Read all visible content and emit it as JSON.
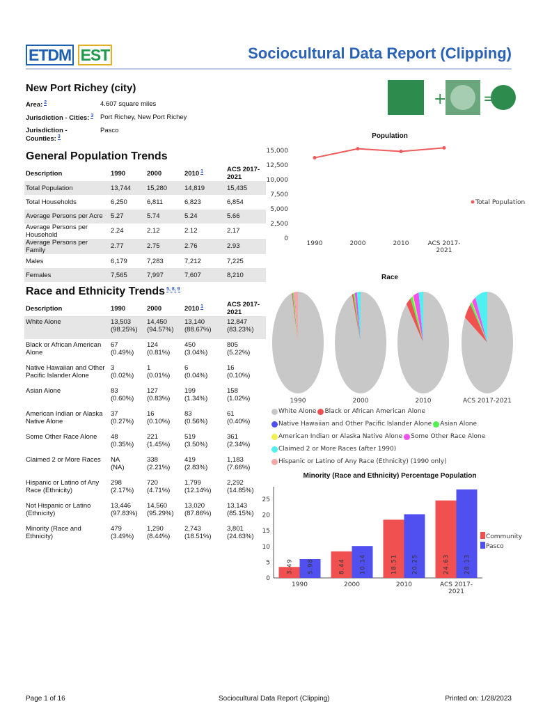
{
  "header": {
    "logo": [
      "ETDM",
      "EST"
    ],
    "title": "Sociocultural Data Report (Clipping)"
  },
  "place": "New Port Richey (city)",
  "info": [
    {
      "label": "Area:",
      "ref": "2",
      "value": "4.607 square miles"
    },
    {
      "label": "Jurisdiction - Cities:",
      "ref": "3",
      "value": "Port Richey, New Port Richey"
    },
    {
      "label": "Jurisdiction - Counties:",
      "ref": "3",
      "value": "Pasco"
    }
  ],
  "general": {
    "title": "General Population Trends",
    "columns": [
      {
        "text": "Description"
      },
      {
        "text": "1990"
      },
      {
        "text": "2000"
      },
      {
        "text": "2010",
        "ref": "1"
      },
      {
        "text": "ACS 2017-2021"
      }
    ],
    "rows": [
      [
        "Total Population",
        "13,744",
        "15,280",
        "14,819",
        "15,435"
      ],
      [
        "Total Households",
        "6,250",
        "6,811",
        "6,823",
        "6,854"
      ],
      [
        "Average Persons per Acre",
        "5.27",
        "5.74",
        "5.24",
        "5.66"
      ],
      [
        "Average Persons per Household",
        "2.24",
        "2.12",
        "2.12",
        "2.17"
      ],
      [
        "Average Persons per Family",
        "2.77",
        "2.75",
        "2.76",
        "2.93"
      ],
      [
        "Males",
        "6,179",
        "7,283",
        "7,212",
        "7,225"
      ],
      [
        "Females",
        "7,565",
        "7,997",
        "7,607",
        "8,210"
      ]
    ]
  },
  "race": {
    "title": "Race and Ethnicity Trends",
    "refs": "5, 8, 9",
    "columns": [
      {
        "text": "Description"
      },
      {
        "text": "1990"
      },
      {
        "text": "2000"
      },
      {
        "text": "2010",
        "ref": "1"
      },
      {
        "text": "ACS 2017-2021"
      }
    ],
    "rows": [
      {
        "cells": [
          "White Alone",
          "13,503",
          "14,450",
          "13,140",
          "12,847"
        ],
        "pct": [
          "(98.25%)",
          "(94.57%)",
          "(88.67%)",
          "(83.23%)"
        ]
      },
      {
        "cells": [
          "Black or African American Alone",
          "67",
          "124",
          "450",
          "805"
        ],
        "pct": [
          "(0.49%)",
          "(0.81%)",
          "(3.04%)",
          "(5.22%)"
        ]
      },
      {
        "cells": [
          "Native Hawaiian and Other Pacific Islander Alone",
          "3",
          "1",
          "6",
          "16"
        ],
        "pct": [
          "(0.02%)",
          "(0.01%)",
          "(0.04%)",
          "(0.10%)"
        ]
      },
      {
        "cells": [
          "Asian Alone",
          "83",
          "127",
          "199",
          "158"
        ],
        "pct": [
          "(0.60%)",
          "(0.83%)",
          "(1.34%)",
          "(1.02%)"
        ]
      },
      {
        "cells": [
          "American Indian or Alaska Native Alone",
          "37",
          "16",
          "83",
          "61"
        ],
        "pct": [
          "(0.27%)",
          "(0.10%)",
          "(0.56%)",
          "(0.40%)"
        ]
      },
      {
        "cells": [
          "Some Other Race Alone",
          "48",
          "221",
          "519",
          "361"
        ],
        "pct": [
          "(0.35%)",
          "(1.45%)",
          "(3.50%)",
          "(2.34%)"
        ]
      },
      {
        "cells": [
          "Claimed 2 or More Races",
          "NA",
          "338",
          "419",
          "1,183"
        ],
        "pct": [
          "(NA)",
          "(2.21%)",
          "(2.83%)",
          "(7.66%)"
        ]
      },
      {
        "cells": [
          "Hispanic or Latino of Any Race (Ethnicity)",
          "298",
          "720",
          "1,799",
          "2,292"
        ],
        "pct": [
          "(2.17%)",
          "(4.71%)",
          "(12.14%)",
          "(14.85%)"
        ]
      },
      {
        "cells": [
          "Not Hispanic or Latino (Ethnicity)",
          "13,446",
          "14,560",
          "13,020",
          "13,143"
        ],
        "pct": [
          "(97.83%)",
          "(95.29%)",
          "(87.86%)",
          "(85.15%)"
        ]
      },
      {
        "cells": [
          "Minority (Race and Ethnicity)",
          "479",
          "1,290",
          "2,743",
          "3,801"
        ],
        "pct": [
          "(3.49%)",
          "(8.44%)",
          "(18.51%)",
          "(24.63%)"
        ]
      }
    ]
  },
  "chart_data": [
    {
      "type": "line",
      "title": "Population",
      "categories": [
        "1990",
        "2000",
        "2010",
        "ACS 2017-2021"
      ],
      "series": [
        {
          "name": "Total Population",
          "color": "#f05a5a",
          "values": [
            13744,
            15280,
            14819,
            15435
          ]
        }
      ],
      "ylim": [
        0,
        15000
      ],
      "yticks": [
        0,
        {
          "value": 2500,
          "label": "2,500"
        },
        {
          "value": 5000,
          "label": "5,000"
        },
        {
          "value": 7500,
          "label": "7,500"
        },
        {
          "value": 10000,
          "label": "10,000"
        },
        {
          "value": 12500,
          "label": "12,500"
        },
        {
          "value": 15000,
          "label": "15,000"
        }
      ],
      "legend": "right"
    },
    {
      "type": "pie",
      "title": "Race",
      "categories": [
        "1990",
        "2000",
        "2010",
        "ACS 2017-2021"
      ],
      "series": [
        {
          "name": "White Alone",
          "color": "#c8c8c8",
          "values": [
            13503,
            14450,
            13140,
            12847
          ]
        },
        {
          "name": "Black or African American Alone",
          "color": "#f05050",
          "values": [
            67,
            124,
            450,
            805
          ]
        },
        {
          "name": "Native Hawaiian and Other Pacific Islander Alone",
          "color": "#5050f0",
          "values": [
            3,
            1,
            6,
            16
          ]
        },
        {
          "name": "Asian Alone",
          "color": "#50f050",
          "values": [
            83,
            127,
            199,
            158
          ]
        },
        {
          "name": "American Indian or Alaska Native Alone",
          "color": "#f0f050",
          "values": [
            37,
            16,
            83,
            61
          ]
        },
        {
          "name": "Some Other Race Alone",
          "color": "#f050f0",
          "values": [
            48,
            221,
            519,
            361
          ]
        },
        {
          "name": "Claimed 2 or More Races (after 1990)",
          "color": "#50f0f0",
          "values": [
            null,
            338,
            419,
            1183
          ]
        },
        {
          "name": "Hispanic or Latino of Any Race (Ethnicity) (1990 only)",
          "color": "#f0a8a8",
          "values": [
            298,
            null,
            null,
            null
          ]
        }
      ]
    },
    {
      "type": "bar",
      "title": "Minority (Race and Ethnicity) Percentage Population",
      "categories": [
        "1990",
        "2000",
        "2010",
        "ACS 2017-2021"
      ],
      "series": [
        {
          "name": "Community",
          "color": "#f05050",
          "values": [
            3.49,
            8.44,
            18.51,
            24.63
          ]
        },
        {
          "name": "Pasco",
          "color": "#5050f0",
          "values": [
            5.98,
            10.14,
            20.25,
            28.13
          ]
        }
      ],
      "ylim": [
        0,
        29
      ],
      "yticks": [
        0,
        5,
        10,
        15,
        20,
        25
      ],
      "legend": "right"
    }
  ],
  "footer": {
    "page": "Page 1 of 16",
    "center": "Sociocultural Data Report (Clipping)",
    "printed": "Printed on: 1/28/2023"
  }
}
